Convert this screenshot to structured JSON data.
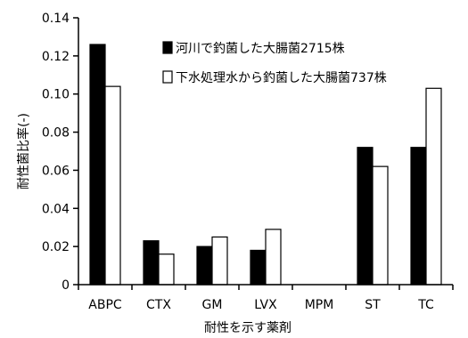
{
  "chart_data": {
    "type": "bar",
    "categories": [
      "ABPC",
      "CTX",
      "GM",
      "LVX",
      "MPM",
      "ST",
      "TC"
    ],
    "series": [
      {
        "name": "河川で釣菌した大腸菌2715株",
        "values": [
          0.126,
          0.023,
          0.02,
          0.018,
          0.0,
          0.072,
          0.072
        ],
        "color": "#000000"
      },
      {
        "name": "下水処理水から釣菌した大腸菌737株",
        "values": [
          0.104,
          0.016,
          0.025,
          0.029,
          0.0,
          0.062,
          0.103
        ],
        "color": "#ffffff"
      }
    ],
    "xlabel": "耐性を示す薬剤",
    "ylabel": "耐性菌比率(-)",
    "ylim": [
      0,
      0.14
    ],
    "yticks": [
      "0",
      "0.02",
      "0.04",
      "0.06",
      "0.08",
      "0.10",
      "0.12",
      "0.14"
    ],
    "grid": false,
    "legend_position": "top-center"
  }
}
